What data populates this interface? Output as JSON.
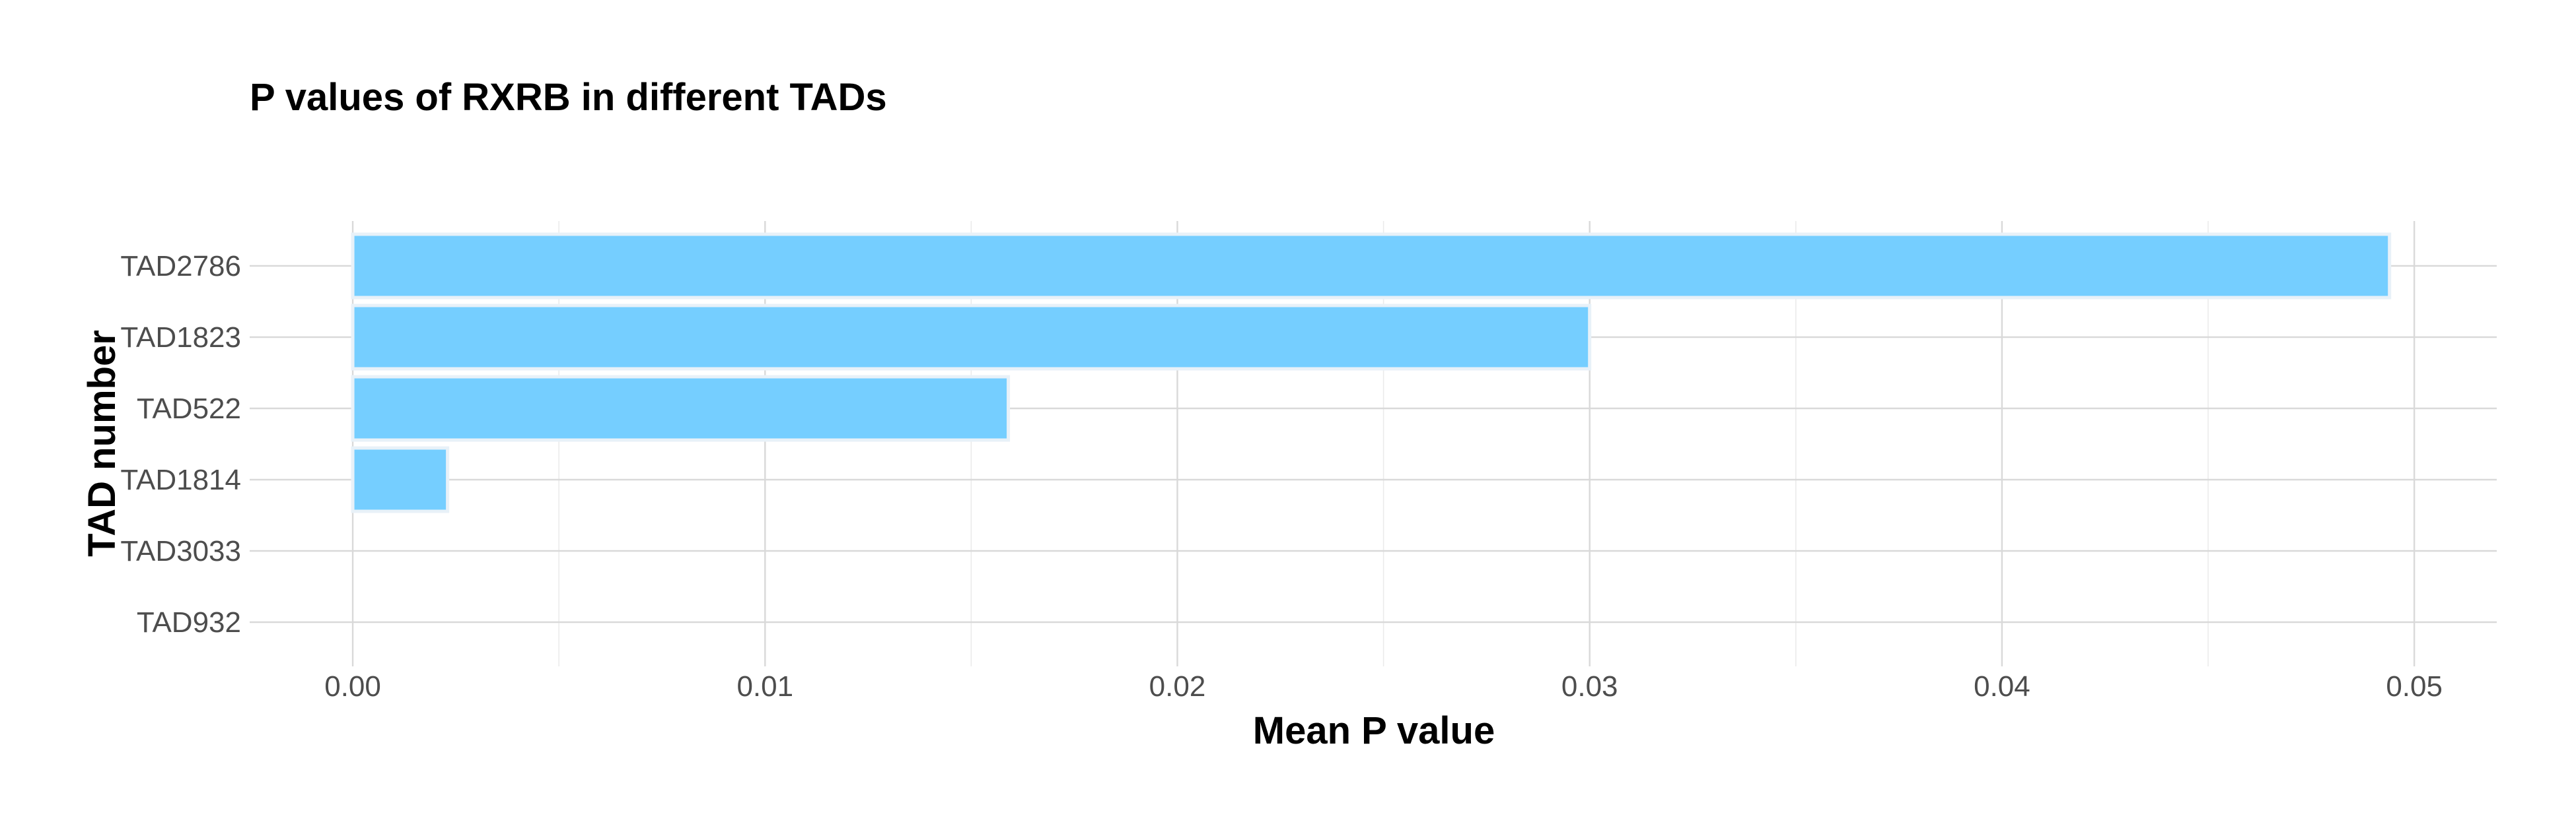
{
  "chart_data": {
    "type": "bar",
    "orientation": "horizontal",
    "title": "P values of RXRB in different TADs",
    "xlabel": "Mean P value",
    "ylabel": "TAD number",
    "categories": [
      "TAD2786",
      "TAD1823",
      "TAD522",
      "TAD1814",
      "TAD3033",
      "TAD932"
    ],
    "values": [
      0.0494,
      0.03,
      0.0159,
      0.0023,
      0.0,
      0.0
    ],
    "xlim": [
      -0.0025,
      0.052
    ],
    "xticks": [
      0.0,
      0.01,
      0.02,
      0.03,
      0.04,
      0.05
    ],
    "xtick_labels": [
      "0.00",
      "0.01",
      "0.02",
      "0.03",
      "0.04",
      "0.05"
    ],
    "grid": true,
    "legend": "none",
    "colors": {
      "bar_fill": "#75CEFF",
      "bar_outline": "#E8F1F8",
      "grid_major": "#D9D9D9",
      "grid_minor": "#EBEBEB",
      "text": "#4D4D4D"
    }
  }
}
